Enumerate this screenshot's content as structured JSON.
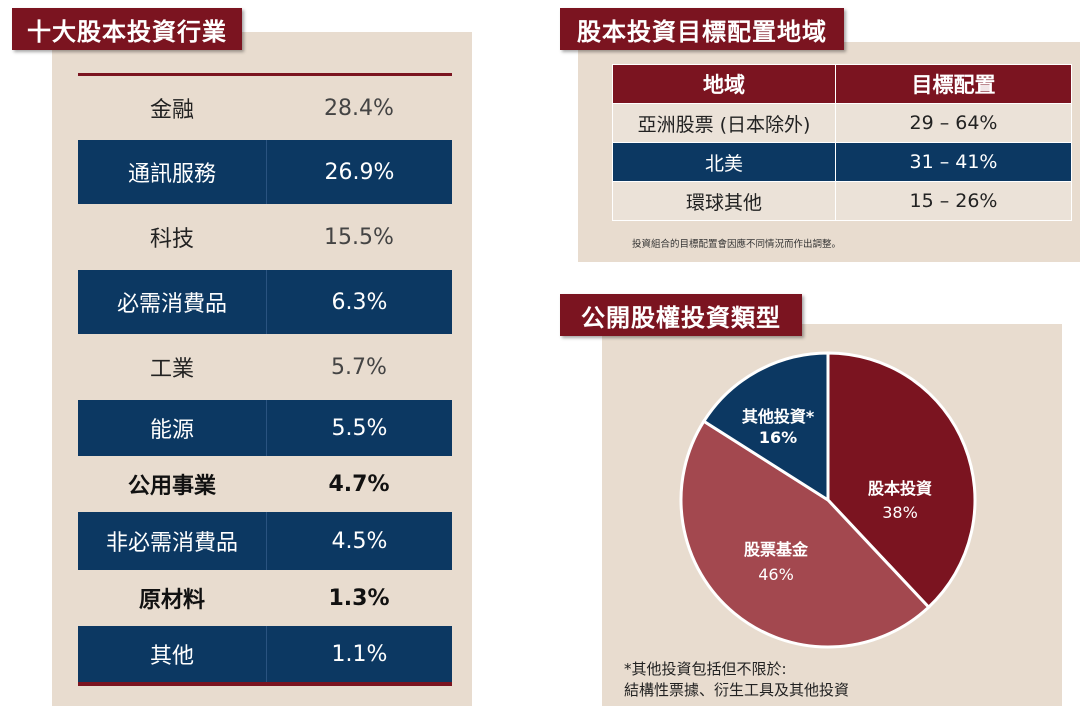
{
  "industries": {
    "title": "十大股本投資行業",
    "rows": [
      {
        "name": "金融",
        "value": "28.4%"
      },
      {
        "name": "通訊服務",
        "value": "26.9%"
      },
      {
        "name": "科技",
        "value": "15.5%"
      },
      {
        "name": "必需消費品",
        "value": "6.3%"
      },
      {
        "name": "工業",
        "value": "5.7%"
      },
      {
        "name": "能源",
        "value": "5.5%"
      },
      {
        "name": "公用事業",
        "value": "4.7%"
      },
      {
        "name": "非必需消費品",
        "value": "4.5%"
      },
      {
        "name": "原材料",
        "value": "1.3%"
      },
      {
        "name": "其他",
        "value": "1.1%"
      }
    ]
  },
  "regions": {
    "title": "股本投資目標配置地域",
    "headers": [
      "地域",
      "目標配置"
    ],
    "rows": [
      {
        "region": "亞洲股票 (日本除外)",
        "allocation": "29 – 64%"
      },
      {
        "region": "北美",
        "allocation": "31 – 41%"
      },
      {
        "region": "環球其他",
        "allocation": "15 – 26%"
      }
    ],
    "note": "投資組合的目標配置會因應不同情況而作出調整。"
  },
  "pie_section": {
    "title": "公開股權投資類型",
    "note_line1": "*其他投資包括但不限於:",
    "note_line2": "結構性票據、衍生工具及其他投資"
  },
  "chart_data": {
    "type": "pie",
    "title": "",
    "slices": [
      {
        "label": "股本投資",
        "value": 38,
        "display": "38%",
        "color": "#7b1420"
      },
      {
        "label": "股票基金",
        "value": 46,
        "display": "46%",
        "color": "#a3484f"
      },
      {
        "label": "其他投資*",
        "value": 16,
        "display": "16%",
        "color": "#0c3862"
      }
    ]
  },
  "colors": {
    "brand_red": "#7b1420",
    "navy": "#0c3862",
    "panel_beige": "#e8dccf"
  }
}
